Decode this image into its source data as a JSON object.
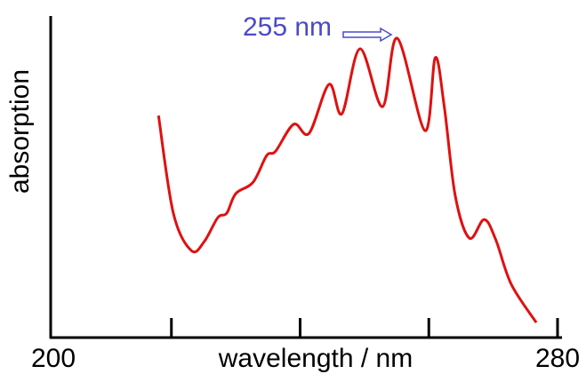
{
  "chart_data": {
    "type": "line",
    "x_label": "wavelength / nm",
    "y_label": "absorption",
    "annotation": "255 nm",
    "annotation_color": "#4a4ac8",
    "xlim": [
      200,
      280
    ],
    "ylim": [
      0,
      100
    ],
    "xticks": [
      200,
      220,
      240,
      260,
      280
    ],
    "x_tick_labels_shown": [
      200,
      280
    ],
    "series": [
      {
        "name": "absorption",
        "color": "#e01010",
        "x": [
          218.0,
          220.3,
          223.1,
          225.1,
          227.2,
          228.6,
          230.0,
          232.7,
          234.8,
          236.2,
          239.0,
          241.4,
          244.5,
          246.5,
          249.3,
          252.8,
          255.1,
          259.4,
          261.0,
          262.4,
          264.1,
          266.3,
          268.6,
          270.4,
          272.8,
          276.7
        ],
        "values": [
          69.4,
          38.9,
          27.2,
          30.0,
          37.5,
          38.9,
          45.0,
          48.6,
          56.9,
          58.3,
          66.7,
          63.9,
          79.2,
          70.0,
          90.3,
          72.2,
          93.6,
          64.7,
          87.5,
          72.2,
          44.4,
          31.1,
          36.9,
          30.6,
          16.7,
          4.7
        ]
      }
    ]
  }
}
